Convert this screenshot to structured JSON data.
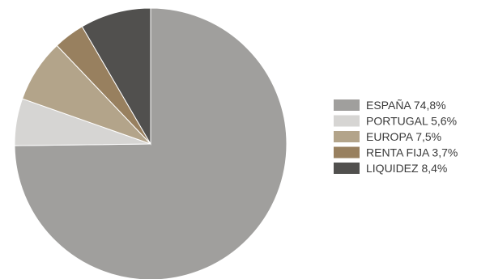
{
  "chart_data": {
    "type": "pie",
    "start_angle_deg": 0,
    "direction": "clockwise",
    "legend_position": "right",
    "slices": [
      {
        "label": "ESPAÑA 74,8%",
        "value": 74.8,
        "color": "#a09f9d"
      },
      {
        "label": "PORTUGAL 5,6%",
        "value": 5.6,
        "color": "#d6d5d3"
      },
      {
        "label": "EUROPA 7,5%",
        "value": 7.5,
        "color": "#b3a48a"
      },
      {
        "label": "RENTA FIJA 3,7%",
        "value": 3.7,
        "color": "#98805f"
      },
      {
        "label": "LIQUIDEZ 8,4%",
        "value": 8.4,
        "color": "#51504e"
      }
    ]
  }
}
